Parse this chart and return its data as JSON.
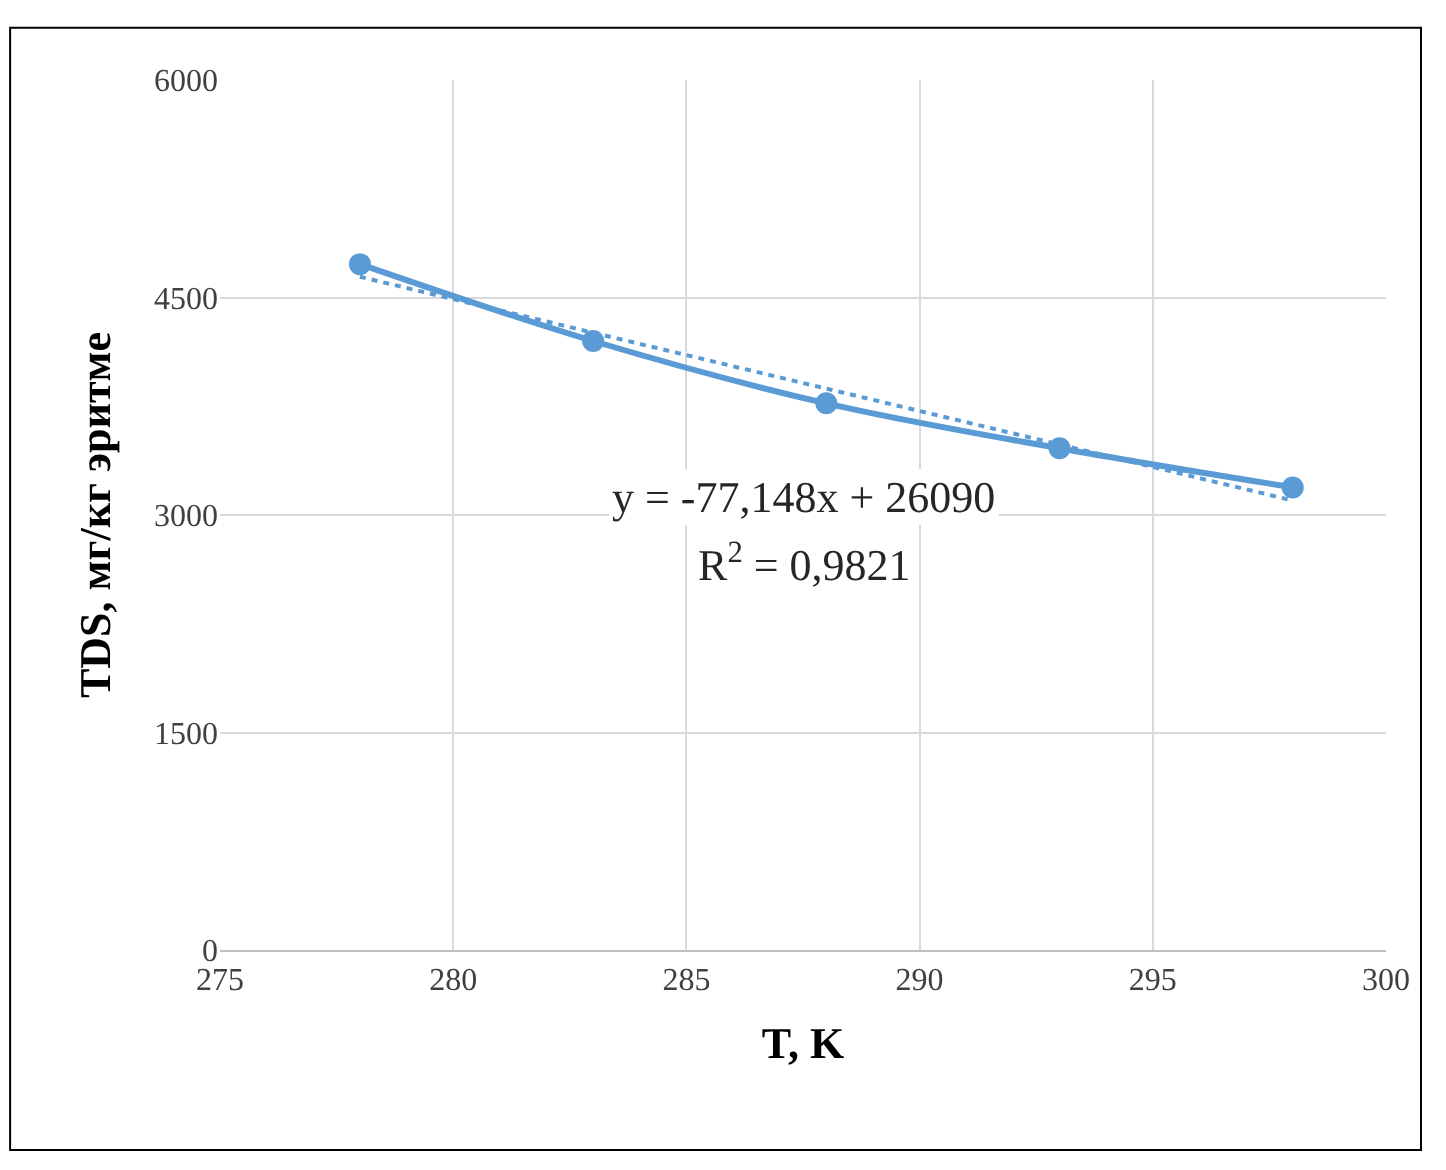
{
  "chart_data": {
    "type": "line",
    "xlabel": "T, K",
    "ylabel": "TDS, мг/кг эритме",
    "xlim": [
      275,
      300
    ],
    "xticks": [
      275,
      280,
      285,
      290,
      295,
      300
    ],
    "ylim": [
      0,
      6000
    ],
    "yticks": [
      0,
      1500,
      3000,
      4500,
      6000
    ],
    "grid": true,
    "marker": "circle",
    "line_style": "solid",
    "series": [
      {
        "color": "#5b9bd5",
        "x": [
          278,
          283,
          288,
          293,
          298
        ],
        "values": [
          4730,
          4200,
          3770,
          3460,
          3190
        ]
      },
      {
        "type": "line",
        "color": "#5b9bd5",
        "line_style": "dotted",
        "marker": "none",
        "x": [
          278,
          298
        ],
        "values": [
          4643,
          3100
        ]
      }
    ],
    "annotations": [
      "y = -77,148x + 26090",
      "R$^{2}$ = 0,9821"
    ]
  }
}
